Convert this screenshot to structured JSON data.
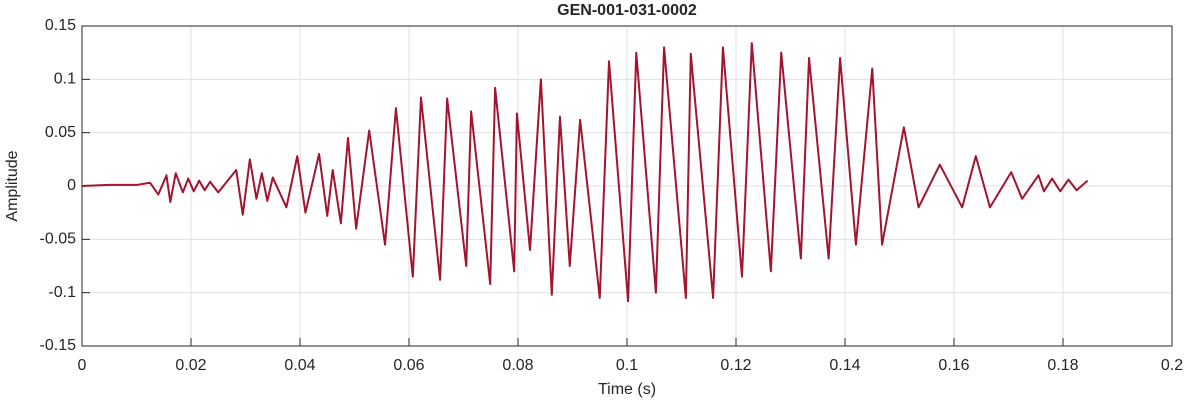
{
  "chart_data": {
    "type": "line",
    "title": "GEN-001-031-0002",
    "x_label": "Time (s)",
    "y_label": "Amplitude",
    "x": [
      0,
      0.005,
      0.01,
      0.0125,
      0.014,
      0.0155,
      0.0162,
      0.0172,
      0.0185,
      0.0195,
      0.0205,
      0.0215,
      0.0225,
      0.0235,
      0.025,
      0.0283,
      0.0295,
      0.0308,
      0.032,
      0.033,
      0.034,
      0.035,
      0.0375,
      0.0395,
      0.041,
      0.0435,
      0.045,
      0.046,
      0.0475,
      0.0488,
      0.0503,
      0.0527,
      0.0556,
      0.0576,
      0.0607,
      0.0622,
      0.0657,
      0.067,
      0.0705,
      0.0714,
      0.0749,
      0.0758,
      0.0793,
      0.0798,
      0.0822,
      0.0842,
      0.0862,
      0.0877,
      0.0895,
      0.0914,
      0.095,
      0.0967,
      0.1002,
      0.1017,
      0.1053,
      0.1068,
      0.1108,
      0.1117,
      0.1158,
      0.1176,
      0.1211,
      0.1229,
      0.1264,
      0.1283,
      0.1319,
      0.1334,
      0.137,
      0.1391,
      0.142,
      0.145,
      0.1468,
      0.1508,
      0.1535,
      0.1574,
      0.1615,
      0.164,
      0.1666,
      0.1705,
      0.1725,
      0.1755,
      0.1765,
      0.178,
      0.1795,
      0.181,
      0.1825,
      0.1845
    ],
    "values": [
      0,
      0.001,
      0.001,
      0.003,
      -0.008,
      0.01,
      -0.015,
      0.012,
      -0.006,
      0.007,
      -0.005,
      0.005,
      -0.004,
      0.004,
      -0.006,
      0.015,
      -0.027,
      0.025,
      -0.012,
      0.012,
      -0.014,
      0.008,
      -0.02,
      0.028,
      -0.025,
      0.03,
      -0.028,
      0.015,
      -0.035,
      0.045,
      -0.04,
      0.052,
      -0.055,
      0.073,
      -0.085,
      0.083,
      -0.088,
      0.082,
      -0.075,
      0.07,
      -0.092,
      0.092,
      -0.08,
      0.068,
      -0.06,
      0.1,
      -0.102,
      0.065,
      -0.075,
      0.062,
      -0.105,
      0.117,
      -0.108,
      0.125,
      -0.1,
      0.13,
      -0.105,
      0.124,
      -0.105,
      0.13,
      -0.085,
      0.134,
      -0.08,
      0.125,
      -0.068,
      0.12,
      -0.068,
      0.12,
      -0.055,
      0.11,
      -0.055,
      0.055,
      -0.02,
      0.02,
      -0.02,
      0.028,
      -0.02,
      0.013,
      -0.012,
      0.01,
      -0.005,
      0.007,
      -0.005,
      0.006,
      -0.004,
      0.005
    ],
    "color": "#a2142f",
    "xlim": [
      0,
      0.2
    ],
    "xticks": [
      0,
      0.02,
      0.04,
      0.06,
      0.08,
      0.1,
      0.12,
      0.14,
      0.16,
      0.18,
      0.2
    ],
    "ylim": [
      -0.15,
      0.15
    ],
    "yticks": [
      -0.15,
      -0.1,
      -0.05,
      0,
      0.05,
      0.1,
      0.15
    ],
    "grid": true
  }
}
